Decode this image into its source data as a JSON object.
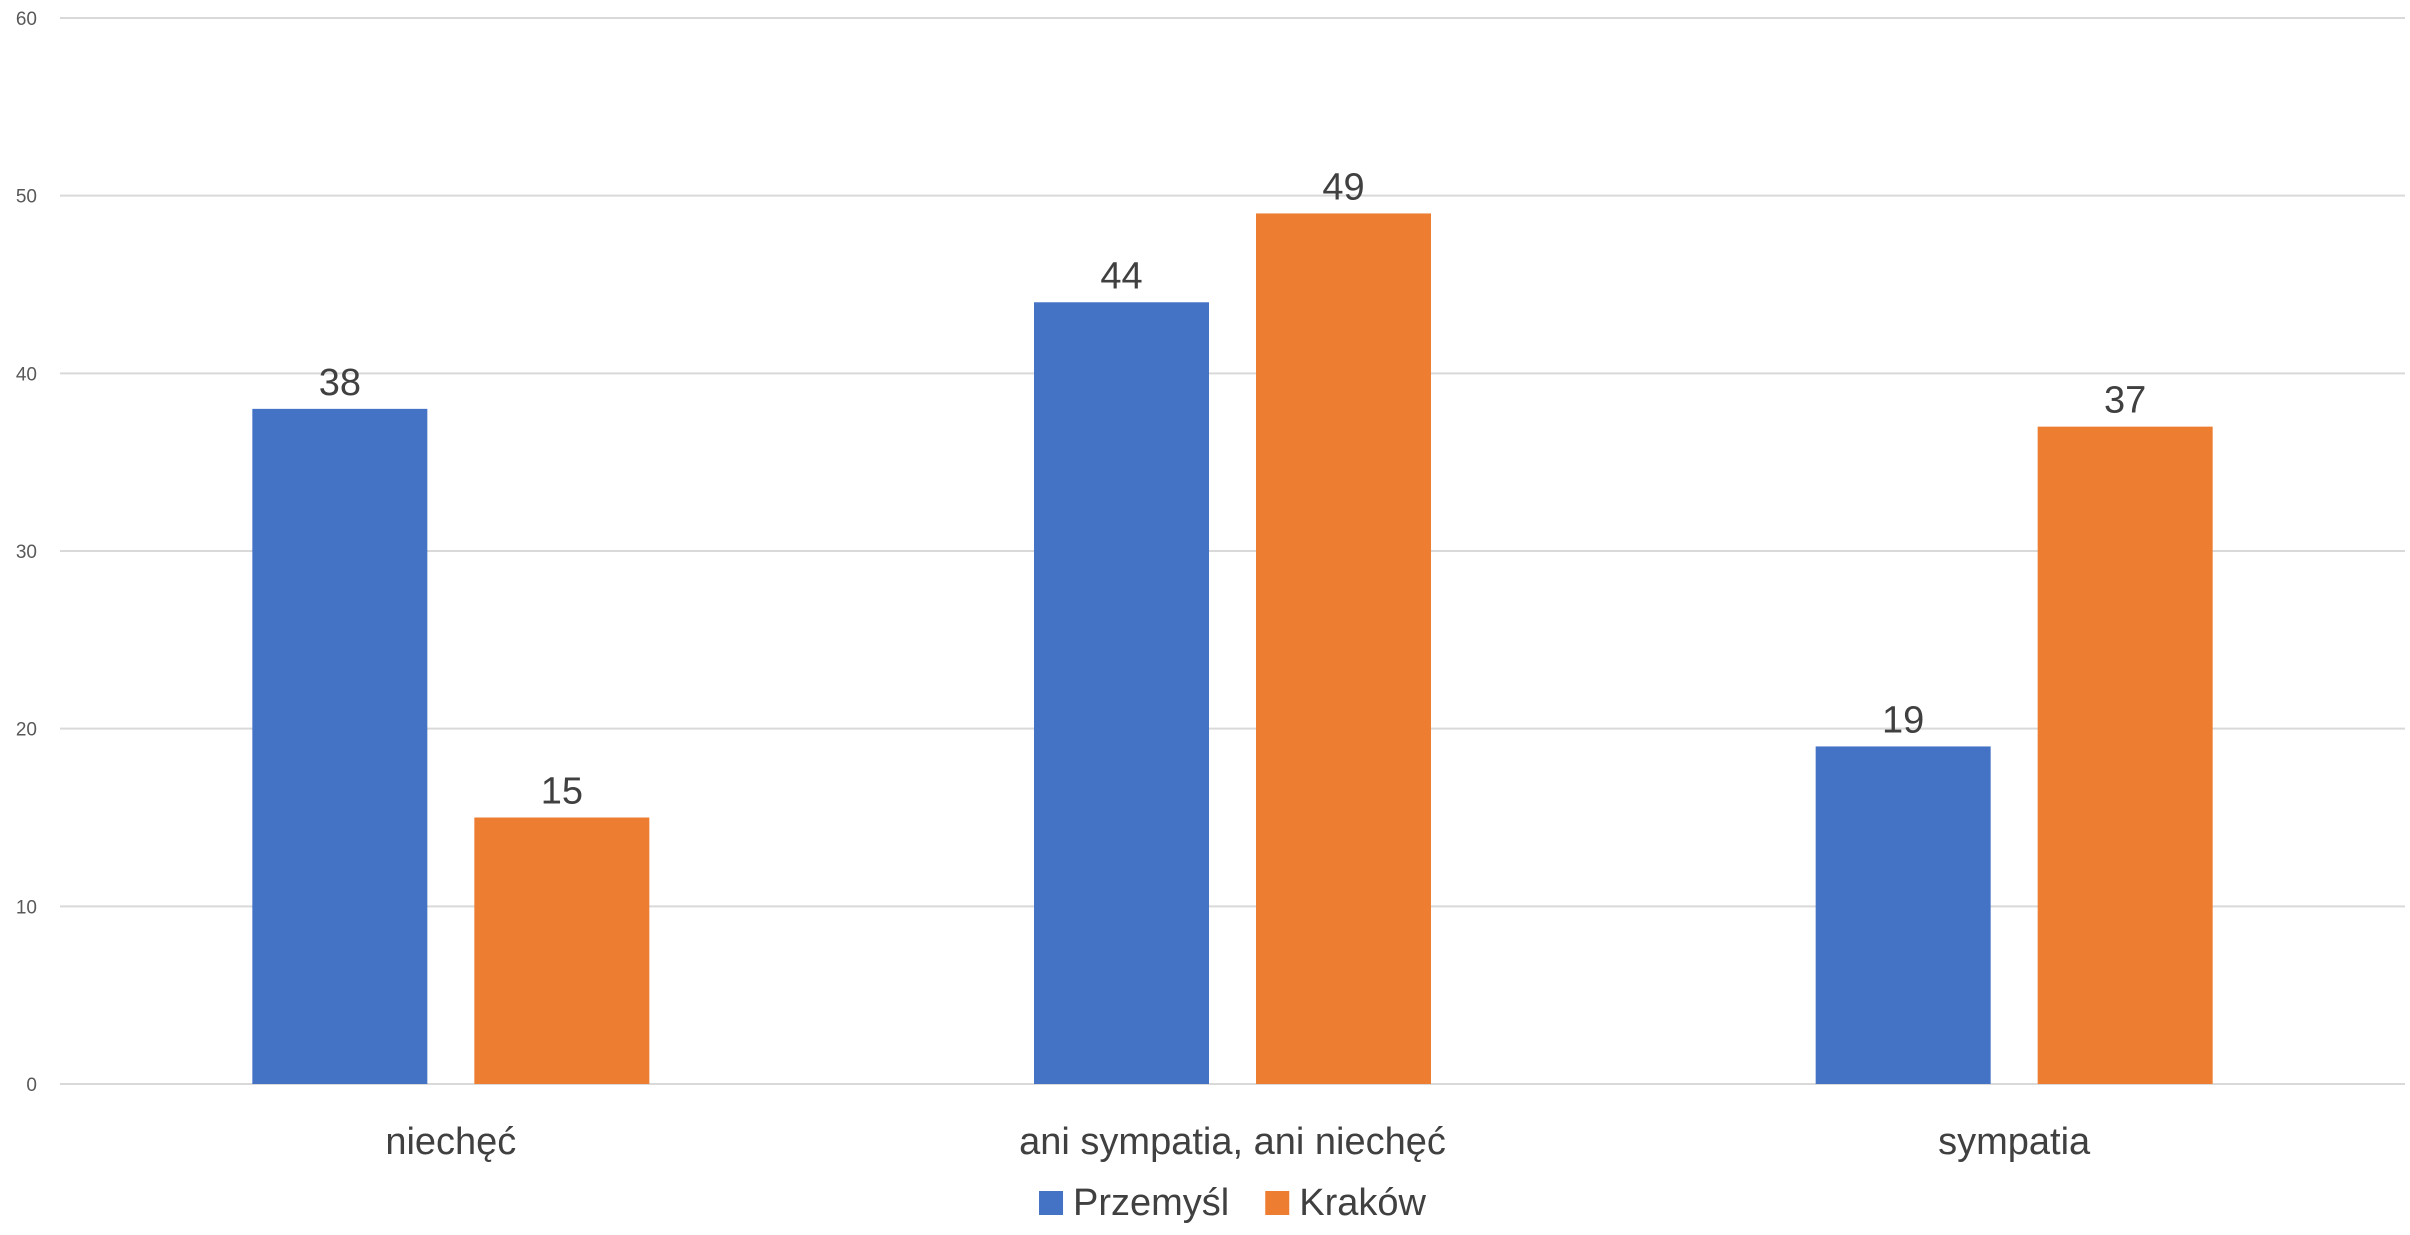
{
  "chart_data": {
    "type": "bar",
    "title": "",
    "xlabel": "",
    "ylabel": "",
    "categories": [
      "niechęć",
      "ani sympatia, ani niechęć",
      "sympatia"
    ],
    "series": [
      {
        "name": "Przemyśl",
        "values": [
          38,
          44,
          19
        ],
        "color": "#4472c4"
      },
      {
        "name": "Kraków",
        "values": [
          15,
          49,
          37
        ],
        "color": "#ed7d31"
      }
    ],
    "ylim": [
      0,
      60
    ],
    "yticks": [
      0,
      10,
      20,
      30,
      40,
      50,
      60
    ],
    "grid": true,
    "legend_position": "bottom",
    "data_labels": true
  }
}
